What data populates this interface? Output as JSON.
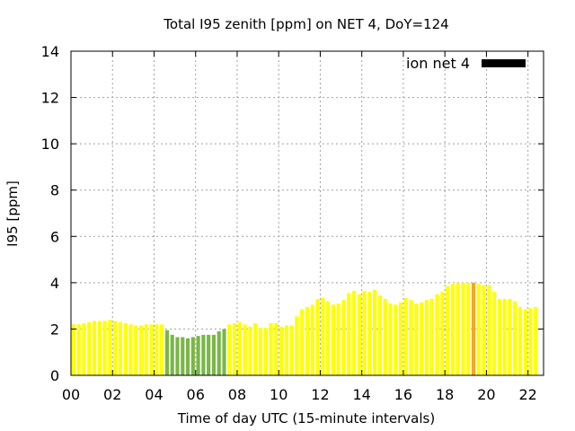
{
  "chart_data": {
    "type": "bar",
    "title": "Total I95 zenith [ppm] on NET 4, DoY=124",
    "xlabel": "Time of day UTC (15-minute intervals)",
    "ylabel": "I95 [ppm]",
    "ylim": [
      0,
      14
    ],
    "xlim": [
      0,
      22.75
    ],
    "x_tick_labels": [
      "00",
      "02",
      "04",
      "06",
      "08",
      "10",
      "12",
      "14",
      "16",
      "18",
      "20",
      "22"
    ],
    "y_tick_labels": [
      "0",
      "2",
      "4",
      "6",
      "8",
      "10",
      "12",
      "14"
    ],
    "grid": true,
    "legend_position": "top-right",
    "series": [
      {
        "name": "ion net 4",
        "legend_color": "#000000",
        "interval_hours": 0.25,
        "values": [
          2.2,
          2.2,
          2.25,
          2.3,
          2.35,
          2.35,
          2.35,
          2.4,
          2.35,
          2.3,
          2.25,
          2.2,
          2.15,
          2.15,
          2.2,
          2.2,
          2.2,
          2.2,
          1.95,
          1.75,
          1.65,
          1.65,
          1.6,
          1.65,
          1.7,
          1.75,
          1.75,
          1.75,
          1.9,
          2.0,
          2.2,
          2.25,
          2.3,
          2.2,
          2.1,
          2.25,
          2.05,
          2.05,
          2.25,
          2.25,
          2.1,
          2.15,
          2.15,
          2.55,
          2.85,
          2.95,
          3.05,
          3.3,
          3.35,
          3.2,
          3.05,
          3.1,
          3.25,
          3.55,
          3.65,
          3.5,
          3.65,
          3.6,
          3.7,
          3.45,
          3.3,
          3.1,
          3.05,
          3.15,
          3.35,
          3.25,
          3.1,
          3.15,
          3.25,
          3.3,
          3.5,
          3.6,
          3.85,
          3.95,
          4.0,
          4.0,
          4.0,
          4.0,
          3.95,
          3.9,
          3.9,
          3.6,
          3.3,
          3.3,
          3.3,
          3.2,
          2.95,
          2.85,
          2.9,
          2.95
        ],
        "bar_colors": [
          "#ffff00",
          "#ffff00",
          "#ffff00",
          "#ffff00",
          "#ffff00",
          "#ffff00",
          "#ffff00",
          "#ffff00",
          "#ffff00",
          "#ffff00",
          "#ffff00",
          "#ffff00",
          "#ffff00",
          "#ffff00",
          "#ffff00",
          "#ffff00",
          "#ffff00",
          "#ffff00",
          "#7ab648",
          "#7ab648",
          "#7ab648",
          "#7ab648",
          "#7ab648",
          "#7ab648",
          "#7ab648",
          "#7ab648",
          "#7ab648",
          "#7ab648",
          "#7ab648",
          "#7ab648",
          "#ffff00",
          "#ffff00",
          "#ffff00",
          "#ffff00",
          "#ffff00",
          "#ffff00",
          "#ffff00",
          "#ffff00",
          "#ffff00",
          "#ffff00",
          "#ffff00",
          "#ffff00",
          "#ffff00",
          "#ffff00",
          "#ffff00",
          "#ffff00",
          "#ffff00",
          "#ffff00",
          "#ffff00",
          "#ffff00",
          "#ffff00",
          "#ffff00",
          "#ffff00",
          "#ffff00",
          "#ffff00",
          "#ffff00",
          "#ffff00",
          "#ffff00",
          "#ffff00",
          "#ffff00",
          "#ffff00",
          "#ffff00",
          "#ffff00",
          "#ffff00",
          "#ffff00",
          "#ffff00",
          "#ffff00",
          "#ffff00",
          "#ffff00",
          "#ffff00",
          "#ffff00",
          "#ffff00",
          "#ffff00",
          "#ffff00",
          "#ffff00",
          "#ffff00",
          "#ffff00",
          "#f5a623",
          "#ffff00",
          "#ffff00",
          "#ffff00",
          "#ffff00",
          "#ffff00",
          "#ffff00",
          "#ffff00",
          "#ffff00",
          "#ffff00",
          "#ffff00",
          "#ffff00",
          "#ffff00"
        ]
      }
    ]
  }
}
